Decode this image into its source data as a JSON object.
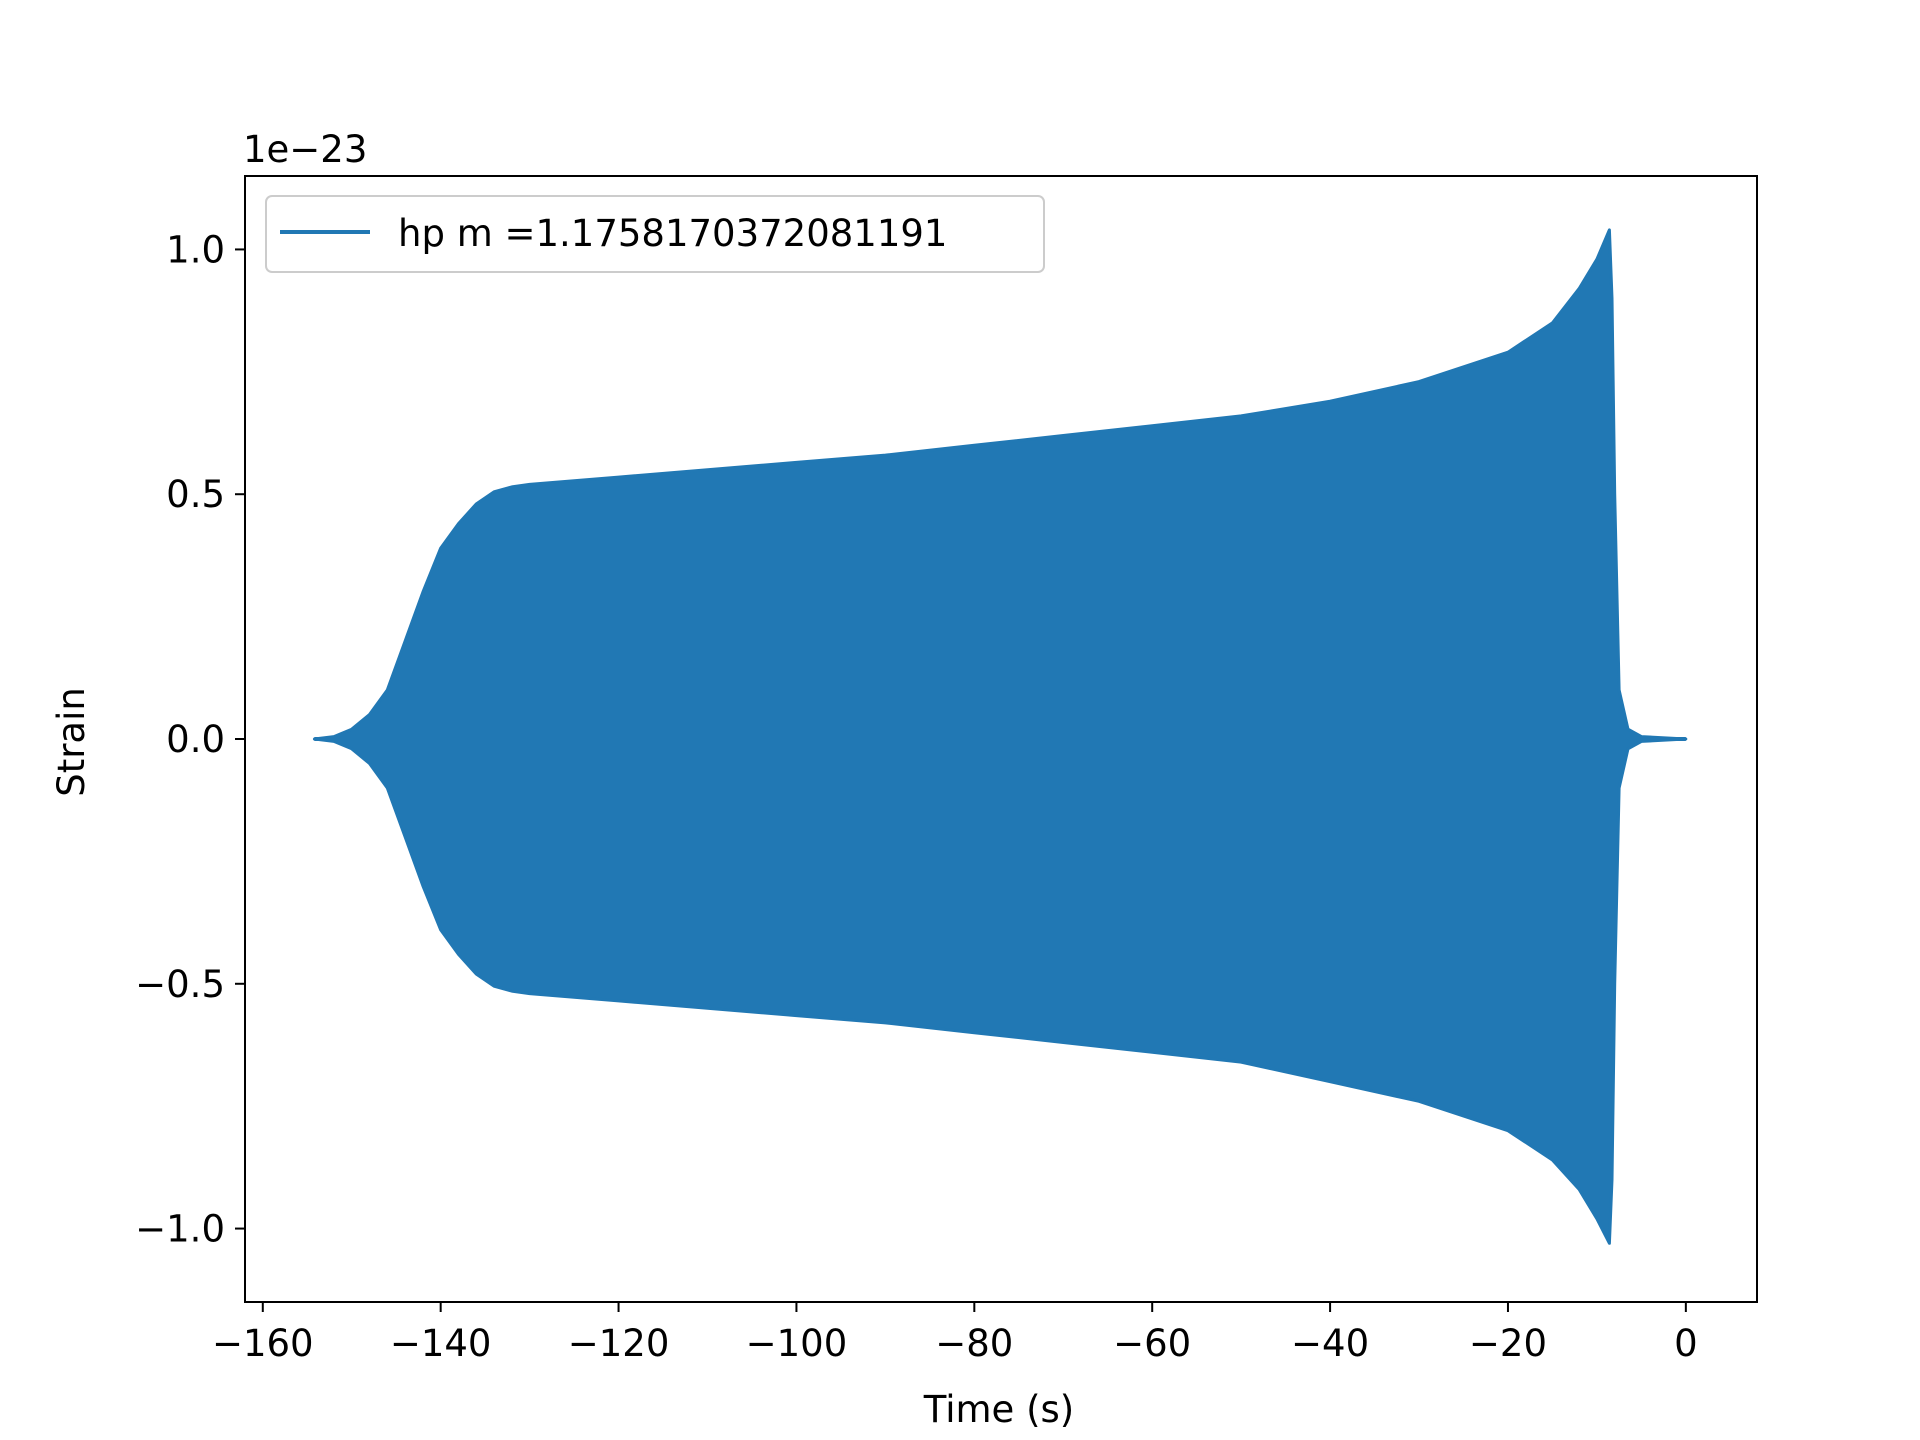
{
  "chart_data": {
    "type": "line",
    "xlabel": "Time (s)",
    "ylabel": "Strain",
    "y_offset_label": "1e−23",
    "xlim": [
      -162,
      8
    ],
    "ylim": [
      -1.15,
      1.15
    ],
    "xticks": [
      -160,
      -140,
      -120,
      -100,
      -80,
      -60,
      -40,
      -20,
      0
    ],
    "xtick_labels": [
      "−160",
      "−140",
      "−120",
      "−100",
      "−80",
      "−60",
      "−40",
      "−20",
      "0"
    ],
    "yticks": [
      1.0,
      0.5,
      0.0,
      -0.5,
      -1.0
    ],
    "ytick_labels": [
      "1.0",
      "0.5",
      "0.0",
      "−0.5",
      "−1.0"
    ],
    "legend_position": "upper-left",
    "grid": false,
    "series": [
      {
        "name": "hp m =1.1758170372081191",
        "color": "#2178b4",
        "envelope_t": [
          -154.2,
          -152,
          -150,
          -148,
          -146,
          -144,
          -142,
          -140,
          -138,
          -136,
          -134,
          -132,
          -130,
          -120,
          -110,
          -100,
          -90,
          -80,
          -70,
          -60,
          -50,
          -40,
          -30,
          -20,
          -15,
          -12,
          -10,
          -8.6,
          -8.3,
          -8.0,
          -7.5,
          -6.5,
          -5,
          0
        ],
        "envelope_upper": [
          0.0,
          0.005,
          0.02,
          0.05,
          0.1,
          0.2,
          0.3,
          0.39,
          0.44,
          0.48,
          0.505,
          0.515,
          0.52,
          0.535,
          0.55,
          0.565,
          0.58,
          0.6,
          0.62,
          0.64,
          0.66,
          0.69,
          0.73,
          0.79,
          0.85,
          0.92,
          0.98,
          1.04,
          0.9,
          0.5,
          0.1,
          0.02,
          0.005,
          0.0
        ],
        "envelope_lower": [
          0.0,
          -0.005,
          -0.02,
          -0.05,
          -0.1,
          -0.2,
          -0.3,
          -0.39,
          -0.44,
          -0.48,
          -0.505,
          -0.515,
          -0.52,
          -0.535,
          -0.55,
          -0.565,
          -0.58,
          -0.6,
          -0.62,
          -0.64,
          -0.66,
          -0.7,
          -0.74,
          -0.8,
          -0.86,
          -0.92,
          -0.98,
          -1.03,
          -0.9,
          -0.5,
          -0.1,
          -0.02,
          -0.005,
          0.0
        ]
      }
    ]
  }
}
